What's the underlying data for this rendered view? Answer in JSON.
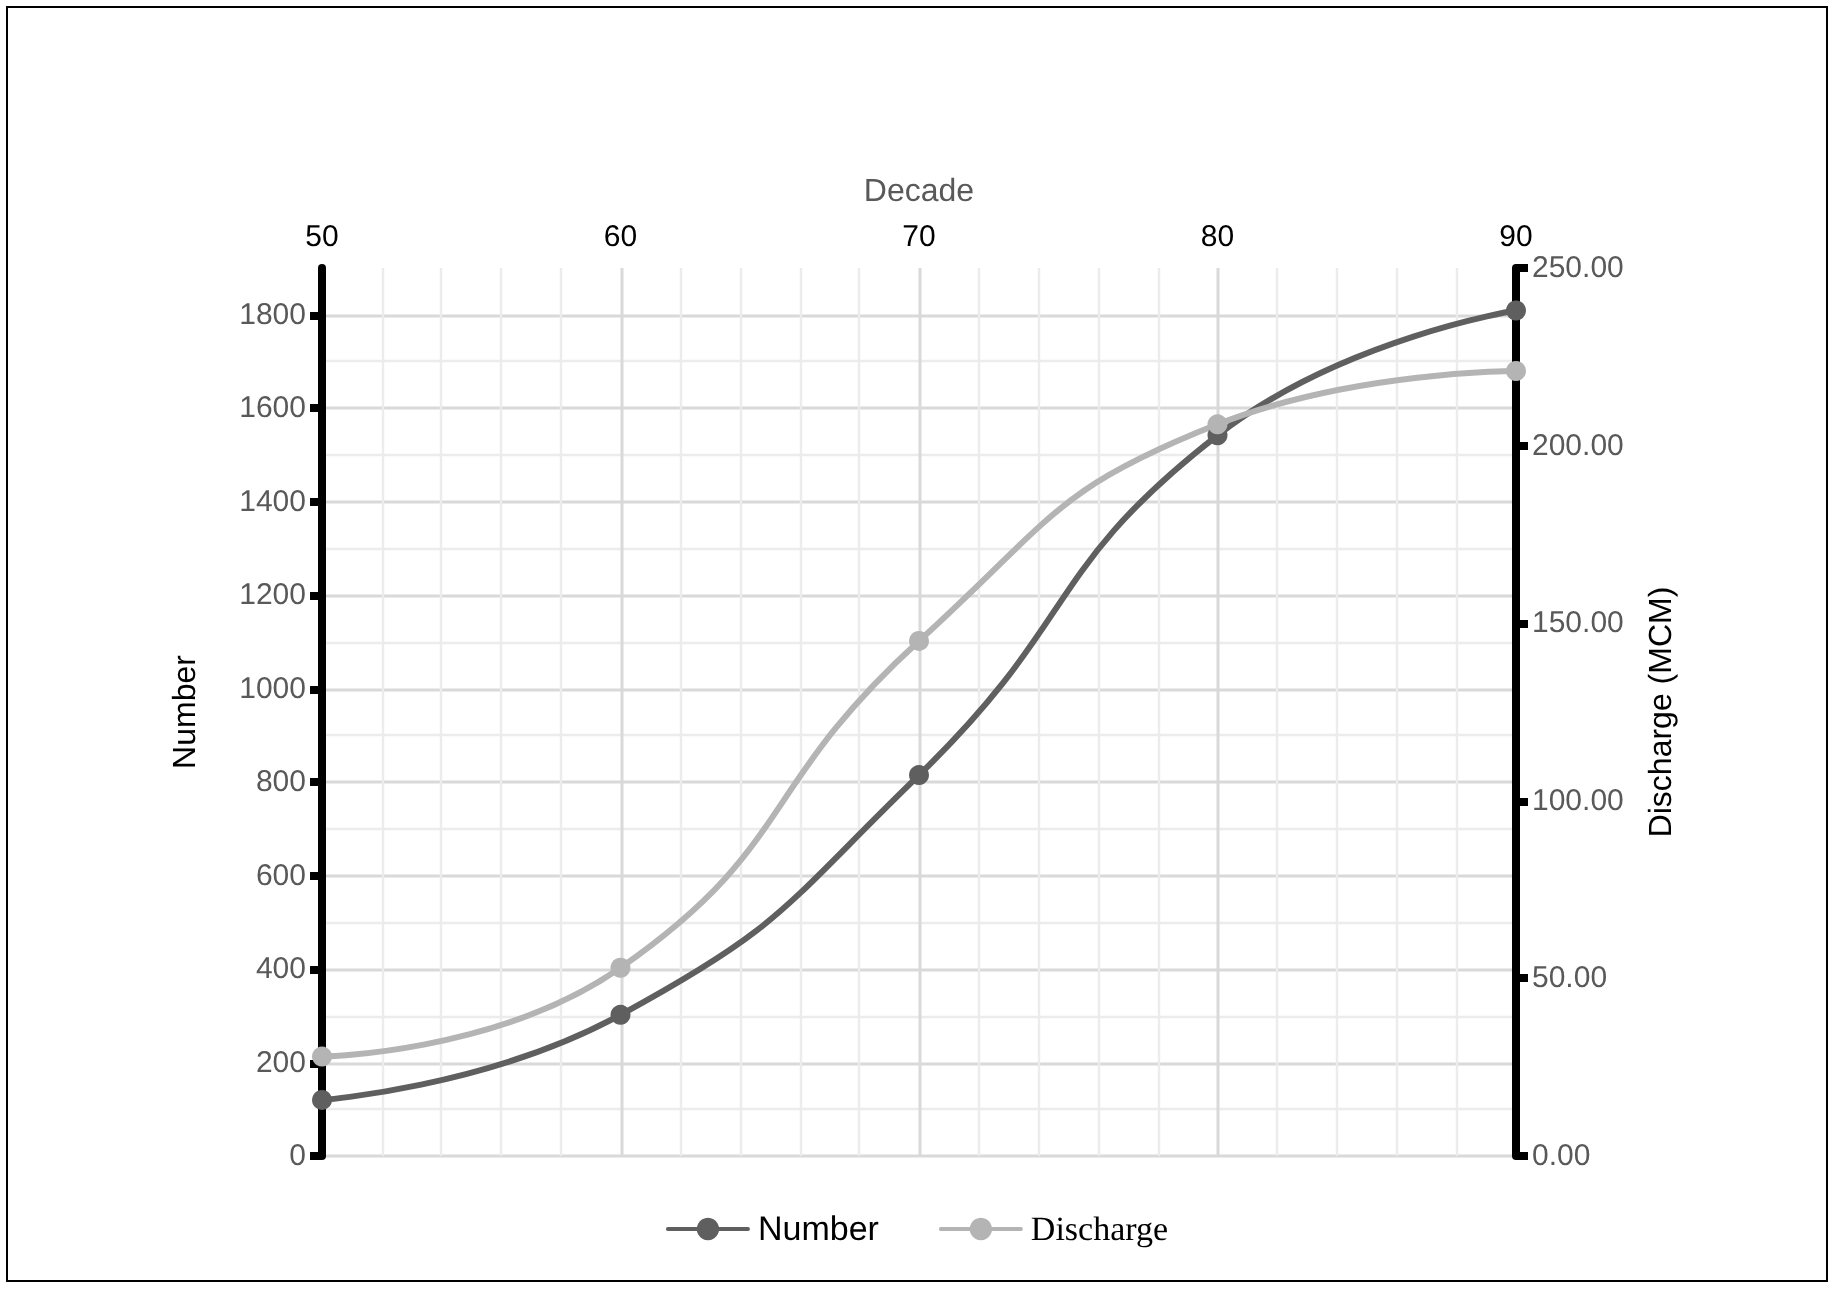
{
  "chart_data": {
    "type": "line",
    "xlabel": "Decade",
    "ylabel": "Number",
    "y2label": "Discharge (MCM)",
    "x": [
      50,
      60,
      70,
      80,
      90
    ],
    "xlim": [
      50,
      90
    ],
    "xticks": [
      50,
      60,
      70,
      80,
      90
    ],
    "ylim": [
      0,
      1900
    ],
    "yticks": [
      0,
      200,
      400,
      600,
      800,
      1000,
      1200,
      1400,
      1600,
      1800
    ],
    "y2lim": [
      0,
      250
    ],
    "y2ticks": [
      {
        "value": 0,
        "label": "0.00"
      },
      {
        "value": 50,
        "label": "50.00"
      },
      {
        "value": 100,
        "label": "100.00"
      },
      {
        "value": 150,
        "label": "150.00"
      },
      {
        "value": 200,
        "label": "200.00"
      },
      {
        "value": 250,
        "label": "250.00"
      }
    ],
    "series": [
      {
        "name": "Number",
        "color": "#5f5f5f",
        "values": [
          120,
          302,
          815,
          1542,
          1809
        ]
      },
      {
        "name": "Discharge",
        "color": "#b4b4b4",
        "axis": "y2",
        "values": [
          28,
          53,
          145,
          206,
          221
        ]
      }
    ],
    "grid": true,
    "legend": "bottom",
    "marker": "circle",
    "line_style": "solid"
  }
}
